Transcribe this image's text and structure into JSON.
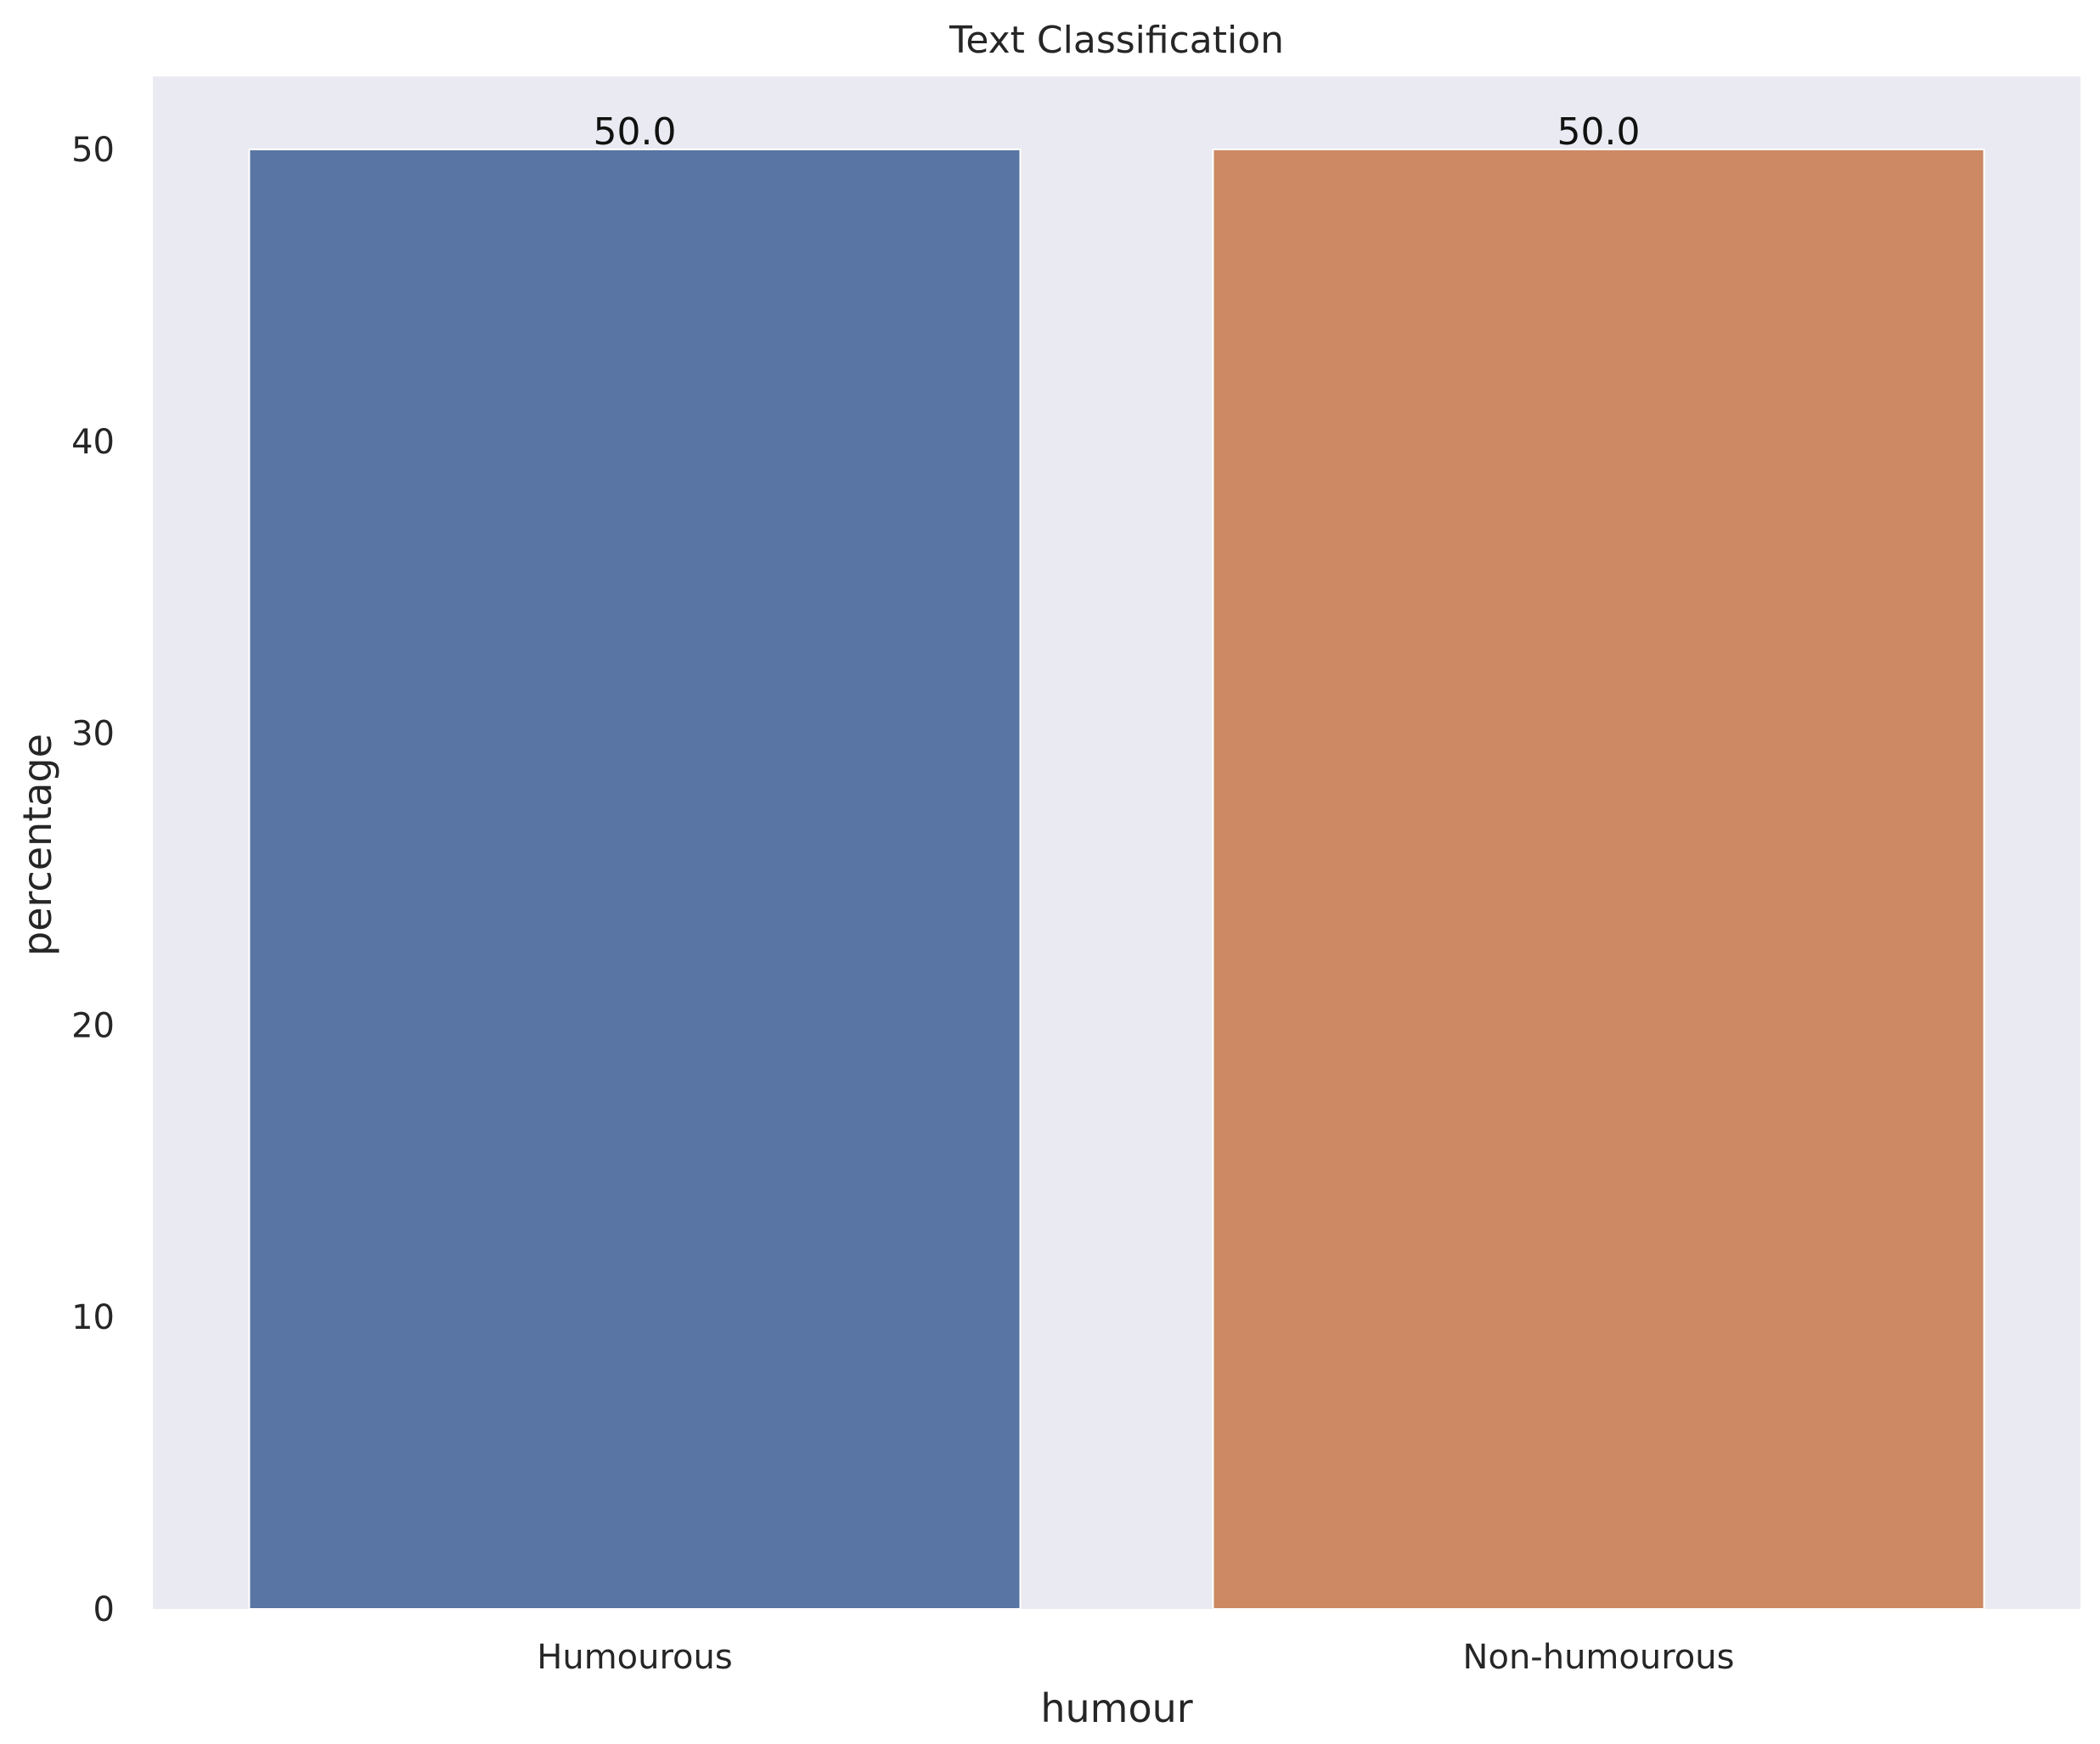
{
  "chart_data": {
    "type": "bar",
    "title": "Text Classification",
    "xlabel": "humour",
    "ylabel": "percentage",
    "categories": [
      "Humourous",
      "Non-humourous"
    ],
    "values": [
      50.0,
      50.0
    ],
    "value_labels": [
      "50.0",
      "50.0"
    ],
    "colors": [
      "#5975a4",
      "#cc8963"
    ],
    "ylim": [
      0,
      52.5
    ],
    "yticks": [
      0,
      10,
      20,
      30,
      40,
      50
    ],
    "ytick_labels": [
      "0",
      "10",
      "20",
      "30",
      "40",
      "50"
    ],
    "grid": false,
    "legend": "none",
    "background_color": "#eaeaf2"
  }
}
